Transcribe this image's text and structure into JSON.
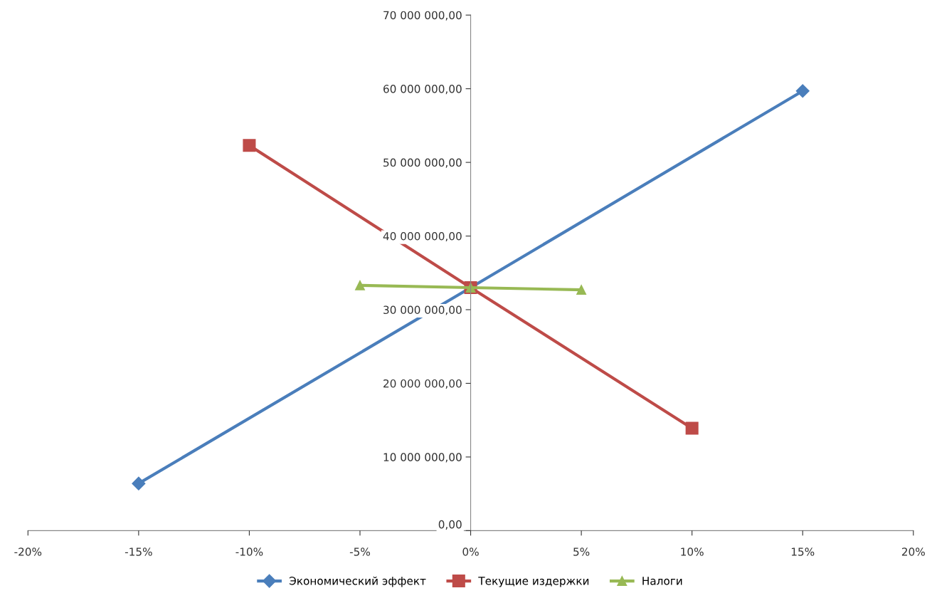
{
  "chart_data": {
    "type": "line",
    "series": [
      {
        "name": "Экономический эффект",
        "color": "#4a7ebb",
        "marker": "diamond",
        "x": [
          -15,
          0,
          15
        ],
        "values": [
          6400000,
          33000000,
          59700000
        ]
      },
      {
        "name": "Текущие издержки",
        "color": "#be4b48",
        "marker": "square",
        "x": [
          -10,
          0,
          10
        ],
        "values": [
          52300000,
          33000000,
          13900000
        ]
      },
      {
        "name": "Налоги",
        "color": "#98b954",
        "marker": "triangle",
        "x": [
          -5,
          0,
          5
        ],
        "values": [
          33300000,
          33000000,
          32700000
        ]
      }
    ],
    "xlim": [
      -20,
      20
    ],
    "xticks": [
      {
        "value": -20,
        "label": "-20%"
      },
      {
        "value": -15,
        "label": "-15%"
      },
      {
        "value": -10,
        "label": "-10%"
      },
      {
        "value": -5,
        "label": "-5%"
      },
      {
        "value": 0,
        "label": "0%"
      },
      {
        "value": 5,
        "label": "5%"
      },
      {
        "value": 10,
        "label": "10%"
      },
      {
        "value": 15,
        "label": "15%"
      },
      {
        "value": 20,
        "label": "20%"
      }
    ],
    "ylim": [
      0,
      70000000
    ],
    "yticks": [
      {
        "value": 0,
        "label": "0,00"
      },
      {
        "value": 10000000,
        "label": "10 000 000,00"
      },
      {
        "value": 20000000,
        "label": "20 000 000,00"
      },
      {
        "value": 30000000,
        "label": "30 000 000,00"
      },
      {
        "value": 40000000,
        "label": "40 000 000,00"
      },
      {
        "value": 50000000,
        "label": "50 000 000,00"
      },
      {
        "value": 60000000,
        "label": "60 000 000,00"
      },
      {
        "value": 70000000,
        "label": "70 000 000,00"
      }
    ],
    "grid": false,
    "legend": "bottom",
    "line_style": "solid"
  }
}
